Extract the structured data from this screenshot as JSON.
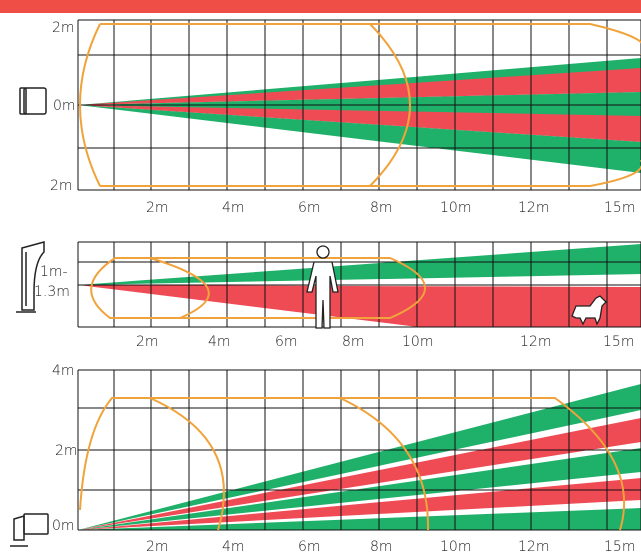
{
  "colors": {
    "top_bar": "#ee4e45",
    "green_zone": "#1fb06a",
    "red_zone": "#ef4b55",
    "outline": "#f0a33b",
    "grid": "#111111",
    "icon_stroke": "#222222"
  },
  "icons": {
    "panel1_sensor": "sensor-side-icon",
    "panel2_sensor": "sensor-wall-bracket-icon",
    "panel3_sensor": "sensor-corner-icon",
    "person": "person-icon",
    "dog": "dog-icon"
  },
  "panel1": {
    "y_top": "2m",
    "y_mid": "0m",
    "y_bottom": "2m",
    "x_ticks": [
      "2m",
      "4m",
      "6m",
      "8m",
      "10m",
      "12m",
      "15m"
    ]
  },
  "panel2": {
    "height_line1": "1m-",
    "height_line2": "1.3m",
    "x_ticks": [
      "2m",
      "4m",
      "6m",
      "8m",
      "10m",
      "12m",
      "15m"
    ]
  },
  "panel3": {
    "y_top": "4m",
    "y_mid": "2m",
    "y_bottom": "0m",
    "x_ticks": [
      "2m",
      "4m",
      "6m",
      "8m",
      "10m",
      "12m",
      "15m"
    ]
  }
}
